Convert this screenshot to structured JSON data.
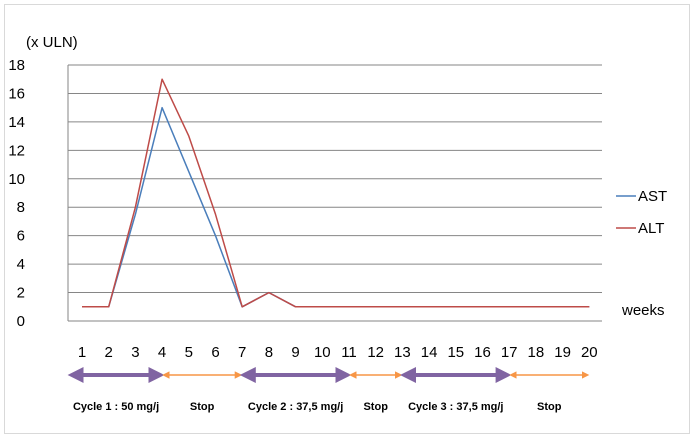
{
  "chart_data": {
    "type": "line",
    "ylabel": "(x ULN)",
    "xlabel": "weeks",
    "ylim": [
      0,
      18
    ],
    "yticks": [
      0,
      2,
      4,
      6,
      8,
      10,
      12,
      14,
      16,
      18
    ],
    "x": [
      1,
      2,
      3,
      4,
      5,
      6,
      7,
      8,
      9,
      10,
      11,
      12,
      13,
      14,
      15,
      16,
      17,
      18,
      19,
      20
    ],
    "grid": "horizontal",
    "legend_position": "right",
    "series": [
      {
        "name": "AST",
        "color": "#4a7ebb",
        "values": [
          1,
          1,
          7.5,
          15,
          10.5,
          6,
          1,
          2,
          1,
          1,
          1,
          1,
          1,
          1,
          1,
          1,
          1,
          1,
          1,
          1
        ]
      },
      {
        "name": "ALT",
        "color": "#be4b48",
        "values": [
          1,
          1,
          8,
          17,
          13,
          7.5,
          1,
          2,
          1,
          1,
          1,
          1,
          1,
          1,
          1,
          1,
          1,
          1,
          1,
          1
        ]
      }
    ],
    "phases": [
      {
        "label": "Cycle  1 : 50 mg/j",
        "from": 1,
        "to": 4,
        "kind": "cycle",
        "color": "#8064a2"
      },
      {
        "label": "Stop",
        "from": 4,
        "to": 7,
        "kind": "stop",
        "color": "#f79646"
      },
      {
        "label": "Cycle  2 : 37,5 mg/j",
        "from": 7,
        "to": 11,
        "kind": "cycle",
        "color": "#8064a2"
      },
      {
        "label": "Stop",
        "from": 11,
        "to": 13,
        "kind": "stop",
        "color": "#f79646"
      },
      {
        "label": "Cycle  3 : 37,5 mg/j",
        "from": 13,
        "to": 17,
        "kind": "cycle",
        "color": "#8064a2"
      },
      {
        "label": "Stop",
        "from": 17,
        "to": 20,
        "kind": "stop",
        "color": "#f79646"
      }
    ]
  }
}
